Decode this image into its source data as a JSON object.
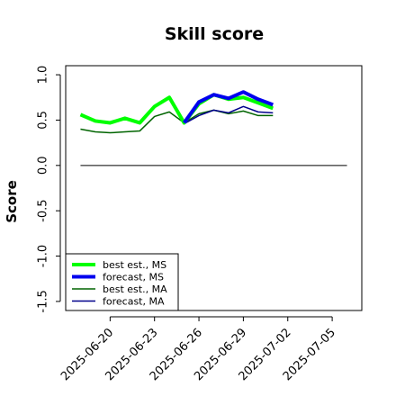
{
  "chart_data": {
    "type": "line",
    "title": "Skill score",
    "xlabel": "",
    "ylabel": "Score",
    "ylim": [
      -1.6,
      1.1
    ],
    "yticks": [
      "1.0",
      "0.5",
      "0.0",
      "-0.5",
      "-1.0",
      "-1.5"
    ],
    "ytick_values": [
      1.0,
      0.5,
      0.0,
      -0.5,
      -1.0,
      -1.5
    ],
    "x": [
      "2025-06-18",
      "2025-06-19",
      "2025-06-20",
      "2025-06-21",
      "2025-06-22",
      "2025-06-23",
      "2025-06-24",
      "2025-06-25",
      "2025-06-26",
      "2025-06-27",
      "2025-06-28",
      "2025-06-29",
      "2025-06-30",
      "2025-07-01",
      "2025-07-02"
    ],
    "xticks": [
      {
        "label": "2025-06-20",
        "date": "2025-06-20",
        "color": "#000000"
      },
      {
        "label": "2025-06-23",
        "date": "2025-06-23",
        "color": "#000000"
      },
      {
        "label": "2025-06-26",
        "date": "2025-06-26",
        "color": "#2e8b2e"
      },
      {
        "label": "2025-06-29",
        "date": "2025-06-29",
        "color": "#000000"
      },
      {
        "label": "2025-07-02",
        "date": "2025-07-02",
        "color": "#000000"
      },
      {
        "label": "2025-07-05",
        "date": "2025-07-05",
        "color": "#000000"
      }
    ],
    "xlim": [
      "2025-06-17",
      "2025-07-07"
    ],
    "reference_line": {
      "y": 0.0,
      "from": "2025-06-18",
      "to": "2025-07-06"
    },
    "series": [
      {
        "name": "best est., MS",
        "color": "#00ff00",
        "width": "thick",
        "values": [
          0.56,
          0.49,
          0.47,
          0.52,
          0.47,
          0.65,
          0.75,
          0.47,
          0.68,
          0.78,
          0.73,
          0.75,
          0.69,
          0.63,
          null
        ]
      },
      {
        "name": "forecast, MS",
        "color": "#0000ee",
        "width": "thick",
        "values": [
          null,
          null,
          null,
          null,
          null,
          null,
          null,
          0.47,
          0.7,
          0.78,
          0.74,
          0.81,
          0.73,
          0.67,
          null
        ]
      },
      {
        "name": "best est., MA",
        "color": "#006400",
        "width": "thin",
        "values": [
          0.4,
          0.37,
          0.36,
          0.37,
          0.38,
          0.54,
          0.59,
          0.47,
          0.57,
          0.61,
          0.57,
          0.6,
          0.55,
          0.55,
          null
        ]
      },
      {
        "name": "forecast, MA",
        "color": "#00008b",
        "width": "thin",
        "values": [
          null,
          null,
          null,
          null,
          null,
          null,
          null,
          0.46,
          0.55,
          0.61,
          0.58,
          0.65,
          0.59,
          0.58,
          null
        ]
      }
    ],
    "legend": {
      "placement": "lower-left"
    },
    "grid": false
  }
}
